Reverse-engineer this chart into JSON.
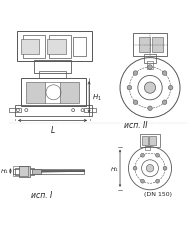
{
  "background_color": "#ffffff",
  "line_color": "#555555",
  "dim_color": "#333333",
  "text_color": "#222222",
  "font_size_label": 5.5,
  "font_size_dim": 5.0,
  "label_isp2": "исп. II",
  "label_isp1": "исп. I",
  "label_dn": "(DN 150)",
  "label_L": "L",
  "label_H1": "H₁"
}
